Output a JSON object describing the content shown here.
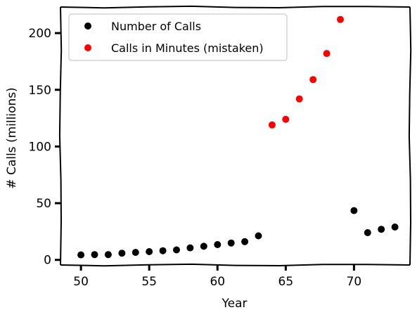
{
  "chart_data": {
    "type": "scatter",
    "title": "",
    "xlabel": "Year",
    "ylabel": "# Calls (millions)",
    "xlim": [
      48.5,
      74.1
    ],
    "ylim": [
      -4.5,
      223
    ],
    "xticks": [
      50,
      55,
      60,
      65,
      70
    ],
    "yticks": [
      0,
      50,
      100,
      150,
      200
    ],
    "grid": false,
    "legend": {
      "position": "top-left"
    },
    "series": [
      {
        "name": "Number of Calls",
        "color": "#000000",
        "x": [
          50,
          51,
          52,
          53,
          54,
          55,
          56,
          57,
          58,
          59,
          60,
          61,
          62,
          63,
          70,
          71,
          72,
          73
        ],
        "y": [
          4.4,
          4.7,
          4.7,
          5.9,
          6.6,
          7.3,
          8.1,
          8.8,
          10.6,
          12.0,
          13.5,
          14.9,
          16.1,
          21.2,
          43.5,
          24.0,
          27.0,
          29.0
        ]
      },
      {
        "name": "Calls in Minutes (mistaken)",
        "color": "#ff0000",
        "x": [
          64,
          65,
          66,
          67,
          68,
          69
        ],
        "y": [
          119.0,
          124.0,
          142.0,
          159.0,
          182.0,
          212.0
        ]
      }
    ]
  }
}
